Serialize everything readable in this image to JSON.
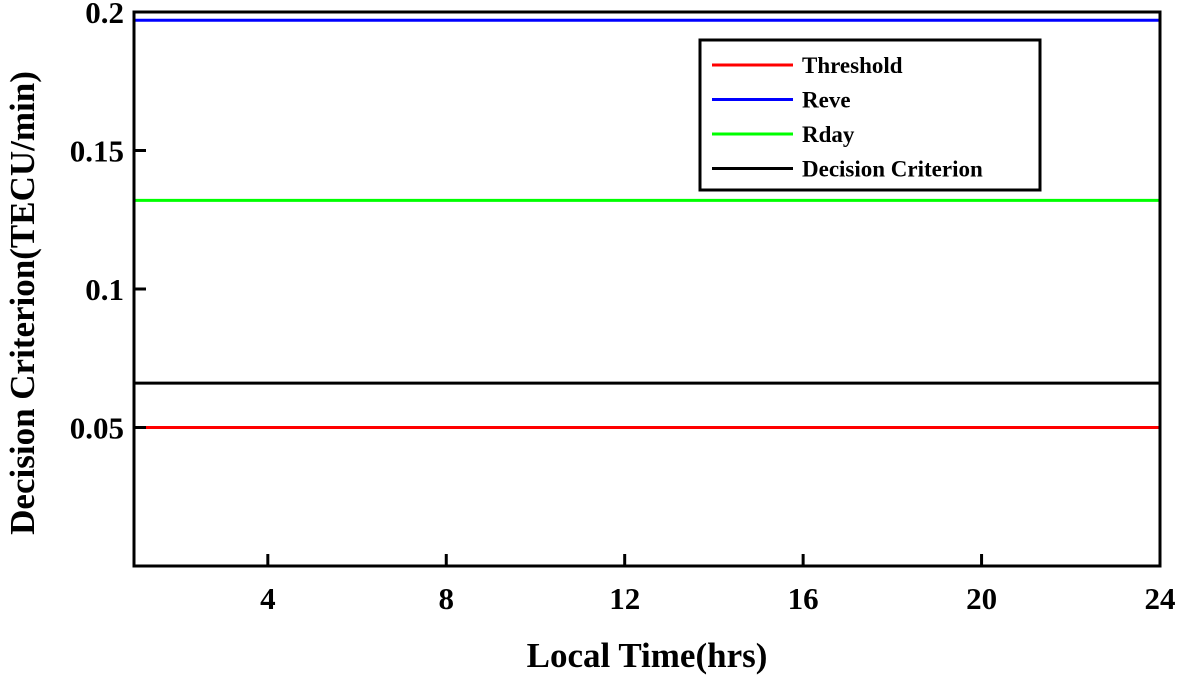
{
  "chart_data": {
    "type": "line",
    "title": "",
    "xlabel": "Local Time(hrs)",
    "ylabel": "Decision Criterion(TECU/min)",
    "xlim": [
      1,
      24
    ],
    "ylim": [
      0,
      0.2
    ],
    "xticks": [
      4,
      8,
      12,
      16,
      20,
      24
    ],
    "xtick_labels": [
      "4",
      "8",
      "12",
      "16",
      "20",
      "24"
    ],
    "yticks": [
      0.05,
      0.1,
      0.15,
      0.2
    ],
    "ytick_labels": [
      "0.05",
      "0.1",
      "0.15",
      "0.2"
    ],
    "grid": false,
    "legend_position": "top-right",
    "series": [
      {
        "name": "Threshold",
        "color": "#ff0000",
        "x": [
          1,
          24
        ],
        "y": [
          0.05,
          0.05
        ]
      },
      {
        "name": "Reve",
        "color": "#0000ff",
        "x": [
          1,
          24
        ],
        "y": [
          0.197,
          0.197
        ]
      },
      {
        "name": "Rday",
        "color": "#00ff00",
        "x": [
          1,
          24
        ],
        "y": [
          0.132,
          0.132
        ]
      },
      {
        "name": "Decision Criterion",
        "color": "#000000",
        "x": [
          1,
          24
        ],
        "y": [
          0.066,
          0.066
        ]
      }
    ]
  }
}
